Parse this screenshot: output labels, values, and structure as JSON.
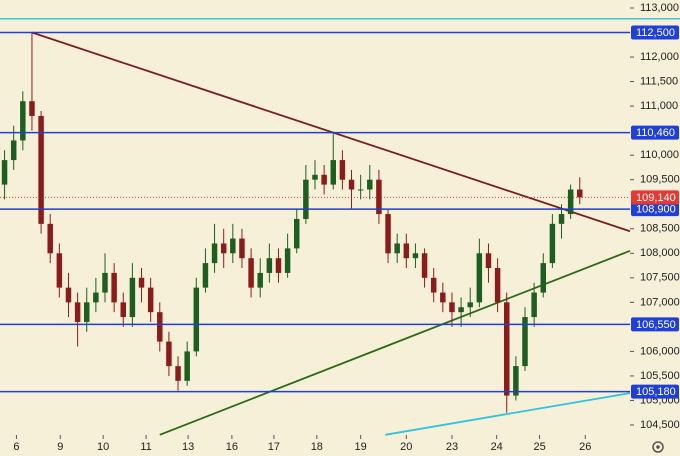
{
  "chart_data": {
    "type": "candlestick",
    "xlim": [
      -0.5,
      68.5
    ],
    "ylim": [
      104296,
      113163
    ],
    "xticks": [
      {
        "value": 1.3,
        "label": "6"
      },
      {
        "value": 6.1,
        "label": "9"
      },
      {
        "value": 10.8,
        "label": "10"
      },
      {
        "value": 15.5,
        "label": "11"
      },
      {
        "value": 20.1,
        "label": "13"
      },
      {
        "value": 24.9,
        "label": "16"
      },
      {
        "value": 29.5,
        "label": "17"
      },
      {
        "value": 34.2,
        "label": "18"
      },
      {
        "value": 39,
        "label": "19"
      },
      {
        "value": 44,
        "label": "20"
      },
      {
        "value": 49,
        "label": "23"
      },
      {
        "value": 53.9,
        "label": "24"
      },
      {
        "value": 58.6,
        "label": "25"
      },
      {
        "value": 63.6,
        "label": "26"
      }
    ],
    "yticks": [
      {
        "value": 113000,
        "label": "113,000"
      },
      {
        "value": 112000,
        "label": "112,000"
      },
      {
        "value": 111500,
        "label": "111,500"
      },
      {
        "value": 111000,
        "label": "111,000"
      },
      {
        "value": 110000,
        "label": "110,000"
      },
      {
        "value": 109500,
        "label": "109,500"
      },
      {
        "value": 108500,
        "label": "108,500"
      },
      {
        "value": 108000,
        "label": "108,000"
      },
      {
        "value": 107500,
        "label": "107,500"
      },
      {
        "value": 107000,
        "label": "107,000"
      },
      {
        "value": 106000,
        "label": "106,000"
      },
      {
        "value": 105500,
        "label": "105,500"
      },
      {
        "value": 105000,
        "label": "105,000"
      },
      {
        "value": 104500,
        "label": "104,500"
      }
    ],
    "up_color": "#1e5e20",
    "down_color": "#8a1c1c",
    "open": [
      109400,
      109900,
      110300,
      111100,
      110800,
      108600,
      108000,
      107300,
      107000,
      106600,
      107000,
      107200,
      107600,
      107000,
      106700,
      107500,
      107300,
      106800,
      106200,
      105700,
      105400,
      106000,
      107300,
      107800,
      108200,
      108000,
      108300,
      107900,
      107300,
      107600,
      107900,
      107600,
      108100,
      108700,
      109500,
      109600,
      109400,
      109900,
      109500,
      109300,
      109300,
      109500,
      108800,
      108000,
      108200,
      107900,
      108000,
      107500,
      107200,
      107000,
      106800,
      106900,
      107000,
      108000,
      107700,
      107000,
      105100,
      105700,
      106700,
      107200,
      107800,
      108600,
      108800,
      109300
    ],
    "high": [
      110100,
      110600,
      111300,
      112500,
      110900,
      108800,
      108200,
      107600,
      107200,
      107300,
      107500,
      108000,
      107800,
      107200,
      107800,
      107700,
      107500,
      107000,
      106400,
      105900,
      106200,
      107500,
      108100,
      108600,
      108500,
      108600,
      108500,
      108100,
      107900,
      108200,
      108100,
      108400,
      108900,
      109800,
      109900,
      109800,
      110460,
      110100,
      109700,
      109600,
      109800,
      109700,
      108900,
      108400,
      108400,
      108200,
      108100,
      107700,
      107400,
      107200,
      107100,
      107300,
      108300,
      108200,
      107900,
      107200,
      105900,
      106900,
      107400,
      108000,
      108800,
      109000,
      109400,
      109550
    ],
    "low": [
      109100,
      109700,
      110100,
      110500,
      108400,
      107800,
      107100,
      106700,
      106100,
      106400,
      106800,
      107000,
      106800,
      106500,
      106500,
      107000,
      106600,
      106000,
      105500,
      105200,
      105300,
      105900,
      107200,
      107600,
      107700,
      107800,
      107700,
      107100,
      107100,
      107400,
      107400,
      107500,
      108000,
      108600,
      109300,
      109200,
      109300,
      109300,
      108900,
      109100,
      109100,
      108600,
      107800,
      107800,
      107700,
      107700,
      107300,
      107000,
      106800,
      106500,
      106500,
      106700,
      106900,
      107400,
      106800,
      104750,
      105000,
      105600,
      106500,
      107100,
      107700,
      108300,
      108700,
      109000
    ],
    "close": [
      109900,
      110300,
      111100,
      110800,
      108600,
      108000,
      107300,
      107000,
      106600,
      107000,
      107200,
      107600,
      107000,
      106700,
      107500,
      107300,
      106800,
      106200,
      105700,
      105400,
      106000,
      107300,
      107800,
      108200,
      108000,
      108300,
      107900,
      107300,
      107600,
      107900,
      107600,
      108100,
      108700,
      109500,
      109600,
      109400,
      109900,
      109500,
      109300,
      109300,
      109500,
      108800,
      108000,
      108200,
      107900,
      108000,
      107500,
      107200,
      107000,
      106800,
      106900,
      107000,
      108000,
      107700,
      107000,
      105100,
      105700,
      106700,
      107200,
      107800,
      108600,
      108800,
      109300,
      109140
    ],
    "levels": [
      {
        "value": 112500,
        "label": "112,500",
        "color": "#1f3fd6"
      },
      {
        "value": 110460,
        "label": "110,460",
        "color": "#1f3fd6"
      },
      {
        "value": 108900,
        "label": "108,900",
        "color": "#1f3fd6"
      },
      {
        "value": 106550,
        "label": "106,550",
        "color": "#1f3fd6"
      },
      {
        "value": 105180,
        "label": "105,180",
        "color": "#1f3fd6"
      }
    ],
    "reference_line": {
      "value": 112780,
      "color": "#3cc6d8"
    },
    "last_price": {
      "value": 109140,
      "label": "109,140",
      "color": "#e53935"
    },
    "trend_lines": [
      {
        "x": [
          3,
          68.5
        ],
        "y": [
          112500,
          108450
        ],
        "color": "#7a1f1f"
      },
      {
        "x": [
          17,
          68.5
        ],
        "y": [
          104300,
          108050
        ],
        "color": "#2b6a1a"
      },
      {
        "x": [
          41.7,
          68.5
        ],
        "y": [
          104300,
          105150
        ],
        "color": "#2ec4dc"
      }
    ]
  }
}
